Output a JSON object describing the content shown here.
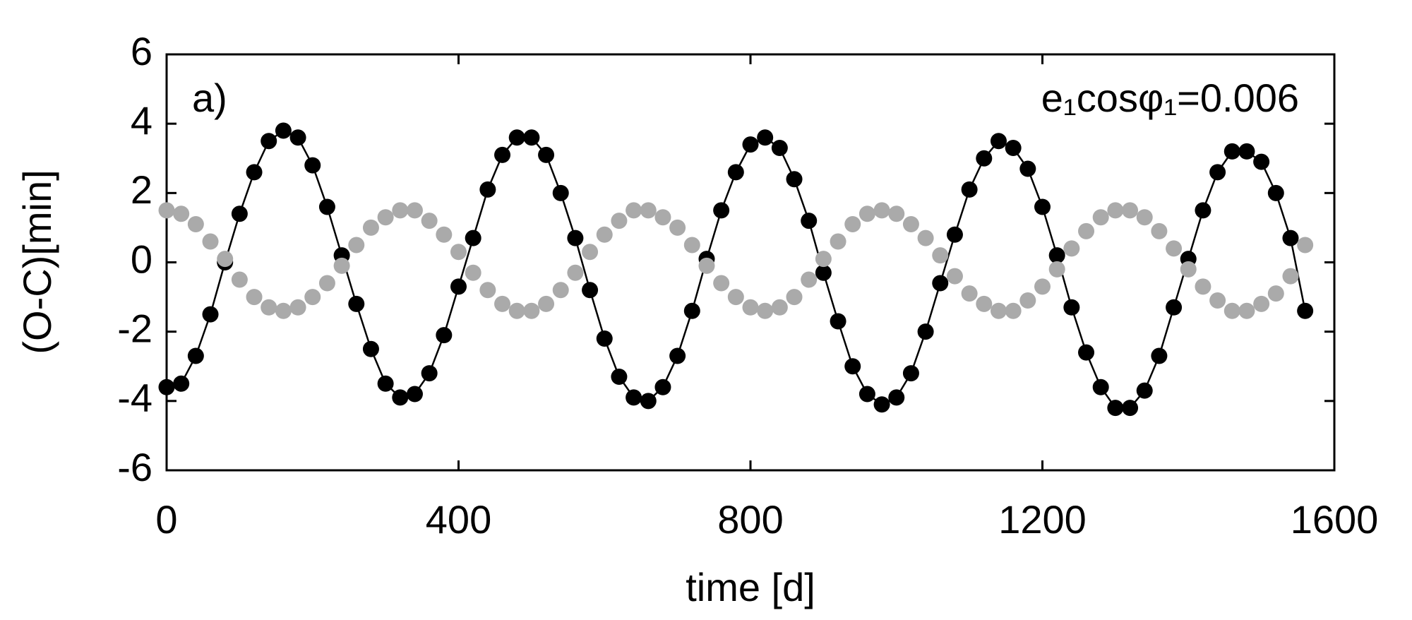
{
  "chart_data": {
    "type": "scatter",
    "xlabel": "time [d]",
    "ylabel": "(O-C)[min]",
    "panel_label": "a)",
    "annotation": "e₁cosφ₁=0.006",
    "x": [
      0,
      20,
      40,
      60,
      80,
      100,
      120,
      140,
      160,
      180,
      200,
      220,
      240,
      260,
      280,
      300,
      320,
      340,
      360,
      380,
      400,
      420,
      440,
      460,
      480,
      500,
      520,
      540,
      560,
      580,
      600,
      620,
      640,
      660,
      680,
      700,
      720,
      740,
      760,
      780,
      800,
      820,
      840,
      860,
      880,
      900,
      920,
      940,
      960,
      980,
      1000,
      1020,
      1040,
      1060,
      1080,
      1100,
      1120,
      1140,
      1160,
      1180,
      1200,
      1220,
      1240,
      1260,
      1280,
      1300,
      1320,
      1340,
      1360,
      1380,
      1400,
      1420,
      1440,
      1460,
      1480,
      1500,
      1520,
      1540,
      1560
    ],
    "series": [
      {
        "color": "#000000",
        "line": true,
        "values": [
          -3.6,
          -3.5,
          -2.7,
          -1.5,
          0.0,
          1.4,
          2.6,
          3.5,
          3.8,
          3.6,
          2.8,
          1.6,
          0.2,
          -1.2,
          -2.5,
          -3.5,
          -3.9,
          -3.8,
          -3.2,
          -2.1,
          -0.7,
          0.7,
          2.1,
          3.1,
          3.6,
          3.6,
          3.1,
          2.0,
          0.7,
          -0.8,
          -2.2,
          -3.3,
          -3.9,
          -4.0,
          -3.6,
          -2.7,
          -1.4,
          0.1,
          1.5,
          2.6,
          3.4,
          3.6,
          3.3,
          2.4,
          1.2,
          -0.3,
          -1.7,
          -3.0,
          -3.8,
          -4.1,
          -3.9,
          -3.2,
          -2.0,
          -0.6,
          0.8,
          2.1,
          3.0,
          3.5,
          3.3,
          2.7,
          1.6,
          0.2,
          -1.3,
          -2.6,
          -3.6,
          -4.2,
          -4.2,
          -3.7,
          -2.7,
          -1.3,
          0.1,
          1.5,
          2.6,
          3.2,
          3.2,
          2.9,
          2.0,
          0.7,
          -1.4
        ]
      },
      {
        "color": "#aaaaaa",
        "line": false,
        "values": [
          1.5,
          1.4,
          1.1,
          0.6,
          0.1,
          -0.5,
          -1.0,
          -1.3,
          -1.4,
          -1.3,
          -1.0,
          -0.6,
          -0.1,
          0.5,
          1.0,
          1.3,
          1.5,
          1.5,
          1.2,
          0.8,
          0.3,
          -0.3,
          -0.8,
          -1.2,
          -1.4,
          -1.4,
          -1.2,
          -0.8,
          -0.3,
          0.3,
          0.8,
          1.2,
          1.5,
          1.5,
          1.3,
          1.0,
          0.5,
          -0.1,
          -0.6,
          -1.0,
          -1.3,
          -1.4,
          -1.3,
          -1.0,
          -0.5,
          0.1,
          0.6,
          1.1,
          1.4,
          1.5,
          1.4,
          1.1,
          0.7,
          0.2,
          -0.4,
          -0.9,
          -1.2,
          -1.4,
          -1.4,
          -1.1,
          -0.7,
          -0.2,
          0.4,
          0.9,
          1.3,
          1.5,
          1.5,
          1.3,
          0.9,
          0.4,
          -0.2,
          -0.7,
          -1.1,
          -1.4,
          -1.4,
          -1.2,
          -0.9,
          -0.4,
          0.5
        ]
      }
    ],
    "xlim": [
      0,
      1600
    ],
    "xticks": [
      0,
      400,
      800,
      1200,
      1600
    ],
    "ylim": [
      -6,
      6
    ],
    "yticks": [
      -6,
      -4,
      -2,
      0,
      2,
      4,
      6
    ]
  }
}
